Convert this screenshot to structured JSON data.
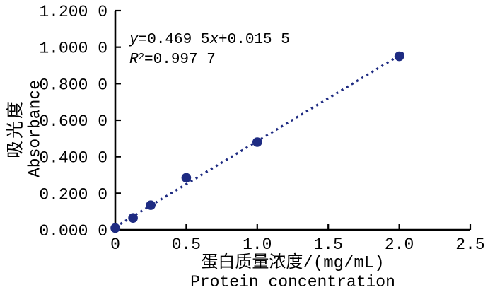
{
  "figure": {
    "background": "#ffffff",
    "axis_color": "#000000",
    "text_color": "#000000"
  },
  "chart_data": {
    "type": "scatter",
    "title": "",
    "grid": false,
    "legend": false,
    "series_color": "#1e2b82",
    "x_axis": {
      "label_cn": "蛋白质量浓度/(mg/mL)",
      "label_en": "Protein concentration",
      "lim": [
        0,
        2.5
      ],
      "ticks": [
        0,
        0.5,
        1.0,
        1.5,
        2.0,
        2.5
      ],
      "tick_labels": [
        "0",
        "0.5",
        "1.0",
        "1.5",
        "2.0",
        "2.5"
      ]
    },
    "y_axis": {
      "label_cn": "吸光度",
      "label_en": "Absorbance",
      "lim": [
        0,
        1.2
      ],
      "ticks": [
        0,
        0.2,
        0.4,
        0.6,
        0.8,
        1.0,
        1.2
      ],
      "tick_labels": [
        "0.000 0",
        "0.200 0",
        "0.400 0",
        "0.600 0",
        "0.800 0",
        "1.000 0",
        "1.200 0"
      ]
    },
    "points": [
      {
        "x": 0,
        "y": 0.01
      },
      {
        "x": 0.125,
        "y": 0.065
      },
      {
        "x": 0.25,
        "y": 0.135
      },
      {
        "x": 0.5,
        "y": 0.285
      },
      {
        "x": 1.0,
        "y": 0.48
      },
      {
        "x": 2.0,
        "y": 0.95
      }
    ],
    "trendline": {
      "type": "linear",
      "slope": 0.4695,
      "intercept": 0.0155,
      "x_start": 0,
      "x_end": 2.03,
      "style": "dotted"
    },
    "equation": {
      "line1_full": "y=0.469 5x+0.015 5",
      "line2_full": "R²=0.997 7",
      "line1": {
        "var1": "y",
        "mid": "=0.469 5",
        "var2": "x",
        "tail": "+0.015 5"
      },
      "line2": {
        "var": "R",
        "sup": "2",
        "tail": "=0.997 7"
      }
    }
  }
}
